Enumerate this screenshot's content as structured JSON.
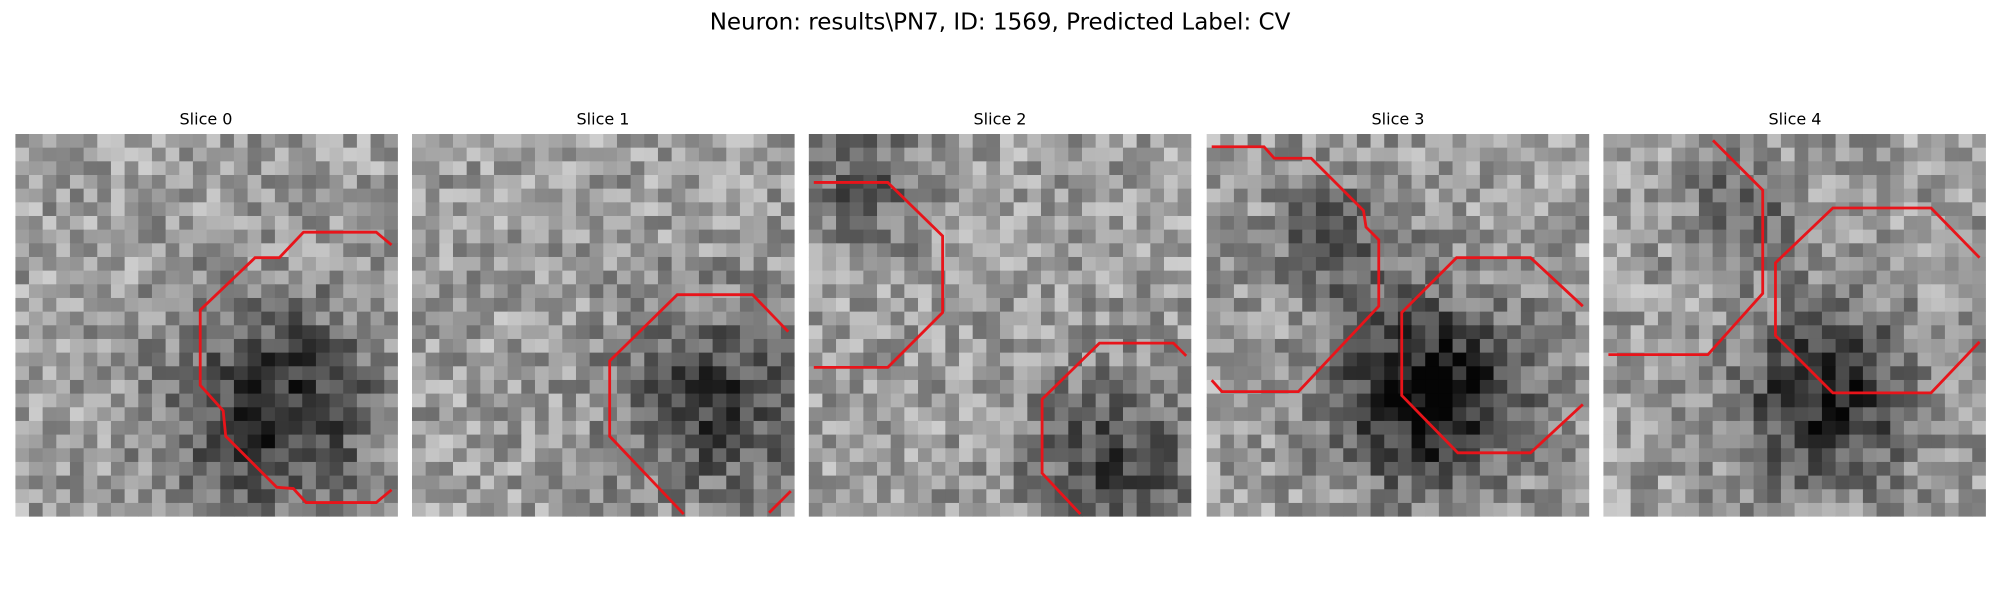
{
  "title": "Neuron: results\\PN7, ID: 1569, Predicted Label: CV",
  "panels": [
    {
      "title": "Slice 0"
    },
    {
      "title": "Slice 1"
    },
    {
      "title": "Slice 2"
    },
    {
      "title": "Slice 3"
    },
    {
      "title": "Slice 4"
    }
  ]
}
